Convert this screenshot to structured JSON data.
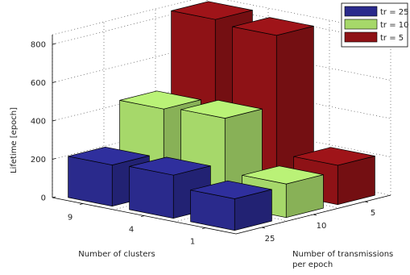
{
  "chart_data": {
    "type": "bar",
    "subtype": "3d-bar",
    "xlabel": "Number of clusters",
    "ylabel_right": "Number of transmissions per epoch",
    "ylabel_right_lines": [
      "Number of transmissions",
      "per epoch"
    ],
    "zlabel": "Lifetime [epoch]",
    "cluster_categories": [
      "9",
      "4",
      "1"
    ],
    "transmission_categories": [
      "25",
      "10",
      "5"
    ],
    "zlim": [
      0,
      850
    ],
    "z_ticks": [
      "0",
      "200",
      "400",
      "600",
      "800"
    ],
    "grid": true,
    "legend_position": "top-right",
    "series": [
      {
        "name": "tr = 25",
        "transmissions": "25",
        "color": "#2a2a8c",
        "values": [
          215,
          225,
          165
        ]
      },
      {
        "name": "tr = 10",
        "transmissions": "10",
        "color": "#a6d86a",
        "values": [
          440,
          455,
          175
        ]
      },
      {
        "name": "tr = 5",
        "transmissions": "5",
        "color": "#8e1216",
        "values": [
          840,
          820,
          205
        ]
      }
    ]
  }
}
